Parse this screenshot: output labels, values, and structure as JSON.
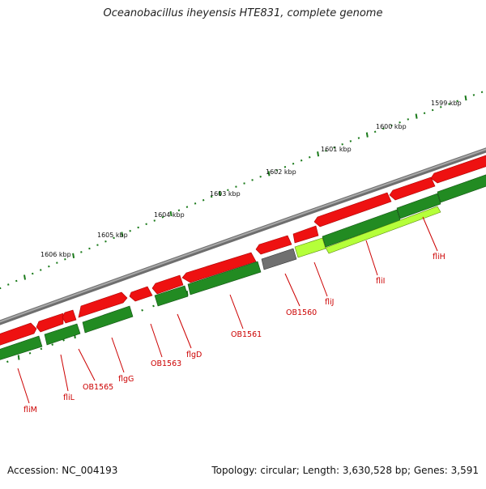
{
  "title": "Oceanobacillus iheyensis HTE831, complete genome",
  "footer": {
    "accession": "Accession: NC_004193",
    "stats": "Topology: circular; Length: 3,630,528 bp; Genes: 3,591"
  },
  "tick_labels": [
    "1599 kbp",
    "1600 kbp",
    "1601 kbp",
    "1602 kbp",
    "1603 kbp",
    "1604 kbp",
    "1605 kbp",
    "1606 kbp"
  ],
  "gene_labels": [
    "fliH",
    "fliI",
    "fliJ",
    "OB1560",
    "OB1561",
    "flgD",
    "OB1563",
    "flgG",
    "OB1565",
    "fliL",
    "fliM"
  ],
  "colors": {
    "backbone": "#8a8a8a",
    "forward_strand": "#ee1111",
    "reverse_strand": "#228b22",
    "highlight_gene": "#b5ff3a",
    "hypothetical_gene": "#707070",
    "tick": "#1a7a1a",
    "label": "#cc0000"
  }
}
